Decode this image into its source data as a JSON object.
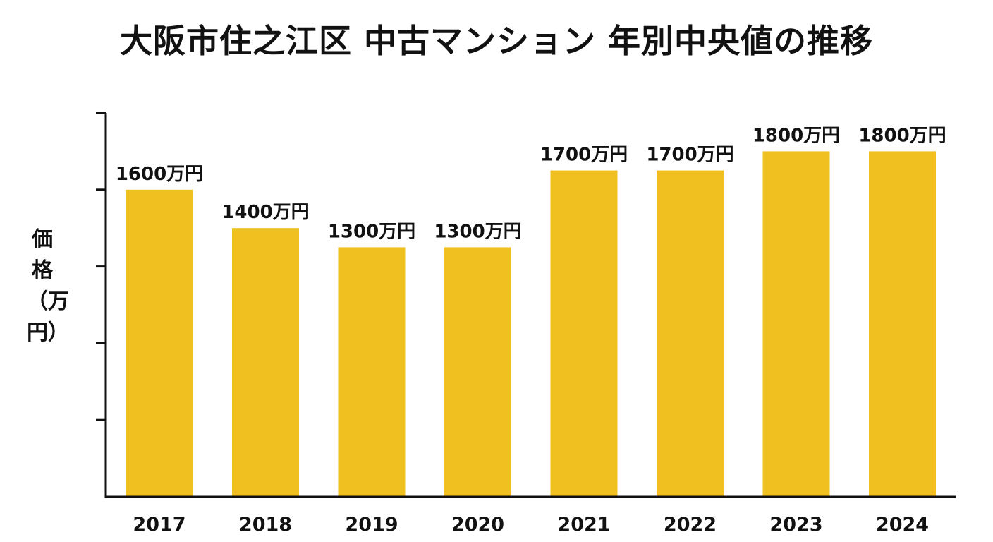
{
  "chart_data": {
    "type": "bar",
    "title": "大阪市住之江区 中古マンション 年別中央値の推移",
    "ylabel": "価格（万円）",
    "xlabel": "",
    "categories": [
      "2017",
      "2018",
      "2019",
      "2020",
      "2021",
      "2022",
      "2023",
      "2024"
    ],
    "values": [
      1600,
      1400,
      1300,
      1300,
      1700,
      1700,
      1800,
      1800
    ],
    "value_labels": [
      "1600万円",
      "1400万円",
      "1300万円",
      "1300万円",
      "1700万円",
      "1700万円",
      "1800万円",
      "1800万円"
    ],
    "unit": "万円",
    "ylim": [
      0,
      2000
    ],
    "grid": false,
    "bar_color": "#F0C020",
    "axis_color": "#111111"
  }
}
